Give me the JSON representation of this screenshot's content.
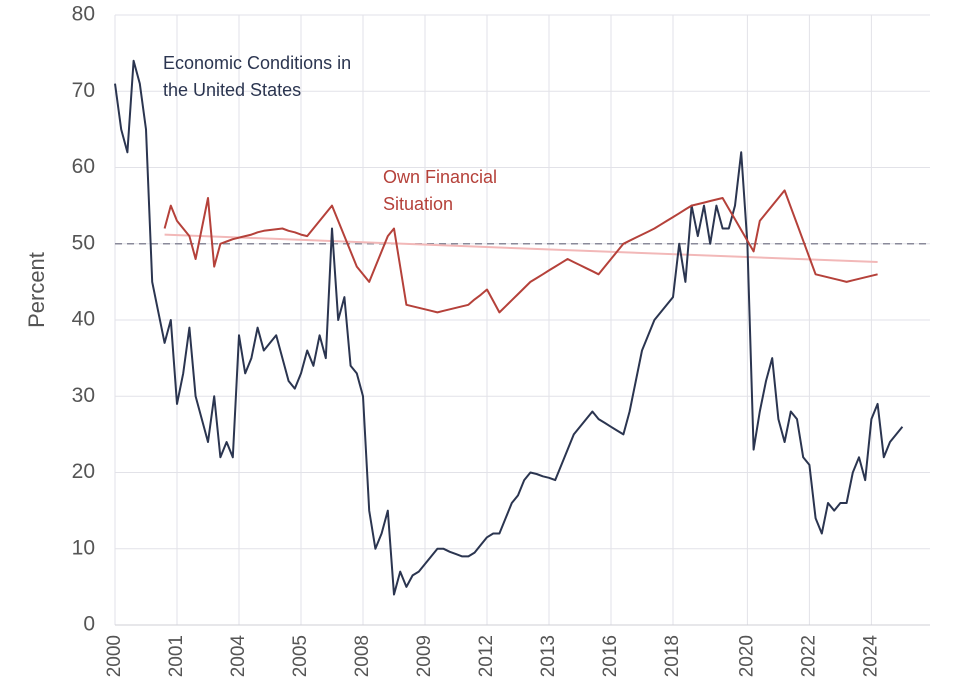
{
  "chart_data": {
    "type": "line",
    "y_label": "Percent",
    "categories": [
      "2000",
      null,
      null,
      null,
      null,
      null,
      null,
      null,
      null,
      null,
      "2001",
      null,
      null,
      null,
      null,
      null,
      null,
      null,
      null,
      null,
      "2004",
      null,
      null,
      null,
      null,
      null,
      null,
      null,
      null,
      null,
      "2005",
      null,
      null,
      null,
      null,
      null,
      null,
      null,
      null,
      null,
      "2008",
      null,
      null,
      null,
      null,
      null,
      null,
      null,
      null,
      null,
      "2009",
      null,
      null,
      null,
      null,
      null,
      null,
      null,
      null,
      null,
      "2012",
      null,
      null,
      null,
      null,
      null,
      null,
      null,
      null,
      null,
      "2013",
      null,
      null,
      null,
      null,
      null,
      null,
      null,
      null,
      null,
      "2016",
      null,
      null,
      null,
      null,
      null,
      null,
      null,
      null,
      null,
      "2018",
      null,
      null,
      null,
      null,
      null,
      null,
      null,
      null,
      null,
      null,
      null,
      "2020",
      null,
      null,
      null,
      null,
      null,
      null,
      null,
      null,
      null,
      "2022",
      null,
      null,
      null,
      null,
      null,
      null,
      null,
      null,
      null,
      "2024",
      null,
      null,
      null,
      null,
      null
    ],
    "series": [
      {
        "name": "Economic Conditions in the United States",
        "label_lines": [
          "Economic Conditions in",
          "the United States"
        ],
        "color": "#2b3550",
        "values": [
          71,
          65,
          62,
          74,
          71,
          65,
          45,
          41,
          37,
          40,
          29,
          33,
          39,
          30,
          27,
          24,
          30,
          22,
          24,
          22,
          38,
          33,
          35,
          39,
          36,
          37,
          38,
          35,
          32,
          31,
          33,
          36,
          34,
          38,
          35,
          52,
          40,
          43,
          34,
          33,
          30,
          15,
          10,
          12,
          15,
          4,
          7,
          5,
          6.5,
          7,
          8,
          9,
          10,
          10,
          9.6,
          9.3,
          9,
          9,
          9.5,
          10.5,
          11.5,
          12,
          12,
          14,
          16,
          17,
          19,
          20,
          19.8,
          19.5,
          19.3,
          19,
          21,
          23,
          25,
          26,
          27,
          28,
          27,
          26.5,
          26,
          25.5,
          25,
          28,
          32,
          36,
          38,
          40,
          41,
          42,
          43,
          50,
          45,
          55,
          51,
          55,
          50,
          55,
          52,
          52,
          55,
          62,
          50,
          23,
          28,
          32,
          35,
          27,
          24,
          28,
          27,
          22,
          21,
          14,
          12,
          16,
          15,
          16,
          16,
          20,
          22,
          19,
          27,
          29,
          22,
          24,
          25,
          26
        ]
      },
      {
        "name": "Own Financial Situation",
        "label_lines": [
          "Own Financial",
          "Situation"
        ],
        "color": "#b5413a",
        "values": [
          null,
          null,
          null,
          null,
          null,
          null,
          null,
          null,
          52,
          55,
          53,
          52,
          51,
          48,
          52,
          56,
          47,
          50,
          50.3,
          50.6,
          50.8,
          51,
          51.2,
          51.5,
          51.7,
          51.8,
          51.9,
          52,
          51.7,
          51.5,
          51.2,
          51,
          52,
          53,
          54,
          55,
          53,
          51,
          49,
          47,
          46,
          45,
          47,
          49,
          51,
          52,
          47,
          42,
          41.8,
          41.6,
          41.4,
          41.2,
          41,
          41.2,
          41.4,
          41.6,
          41.8,
          42,
          42.7,
          43.3,
          44,
          42.5,
          41,
          41.8,
          42.6,
          43.4,
          44.2,
          45,
          45.5,
          46,
          46.5,
          47,
          47.5,
          48,
          47.6,
          47.2,
          46.8,
          46.4,
          46,
          47,
          48,
          49,
          50,
          50.4,
          50.8,
          51.2,
          51.6,
          52,
          52.5,
          53,
          53.5,
          54,
          54.5,
          55,
          55.2,
          55.4,
          55.6,
          55.8,
          56,
          54.6,
          53.2,
          51.8,
          50.4,
          49,
          53,
          54,
          55,
          56,
          57,
          54.8,
          52.6,
          50.4,
          48.2,
          46,
          45.8,
          45.6,
          45.4,
          45.2,
          45,
          45.2,
          45.4,
          45.6,
          45.8,
          46,
          null,
          null,
          null,
          null
        ]
      }
    ],
    "reference_line": {
      "value": 50,
      "color": "#8a8a9a",
      "dashed": true
    },
    "trend_line": {
      "start_index": 8,
      "end_index": 123,
      "start": 51.2,
      "end": 47.6,
      "color": "#f2b8b8"
    },
    "ylim": [
      0,
      80
    ],
    "yticks": [
      0,
      10,
      20,
      30,
      40,
      50,
      60,
      70,
      80
    ],
    "grid": true
  }
}
